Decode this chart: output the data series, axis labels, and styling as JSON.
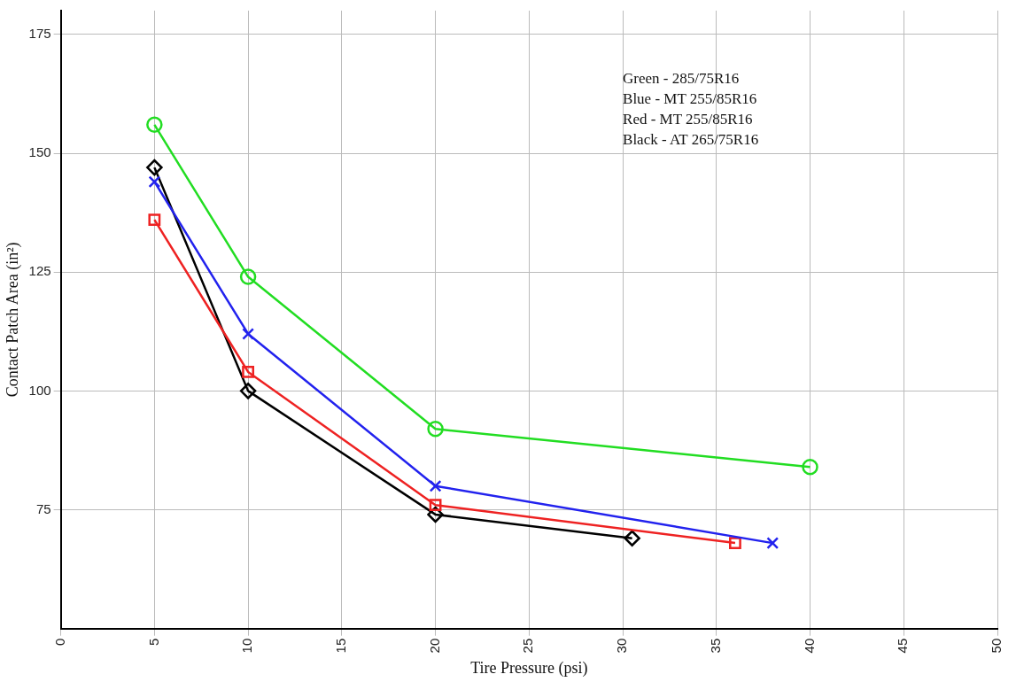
{
  "chart_data": {
    "type": "line",
    "xlabel": "Tire Pressure (psi)",
    "ylabel": "Contact Patch Area (in²)",
    "xlim": [
      0,
      50
    ],
    "xticks": [
      0,
      5,
      10,
      15,
      20,
      25,
      30,
      35,
      40,
      45,
      50
    ],
    "ylim": [
      50,
      180
    ],
    "yticks": [
      75,
      100,
      125,
      150,
      175
    ],
    "grid": true,
    "legend": false,
    "line_style": "solid",
    "series": [
      {
        "color": "#22dd22",
        "marker": "circle",
        "x": [
          5,
          10,
          20,
          40
        ],
        "values": [
          156,
          124,
          92,
          84
        ]
      },
      {
        "color": "#2222ee",
        "marker": "cross",
        "x": [
          5,
          10,
          20,
          38
        ],
        "values": [
          144,
          112,
          80,
          68
        ]
      },
      {
        "color": "#ee2222",
        "marker": "square",
        "x": [
          5,
          10,
          20,
          36
        ],
        "values": [
          136,
          104,
          76,
          68
        ]
      },
      {
        "color": "#000000",
        "marker": "diamond",
        "x": [
          5,
          10,
          20,
          30.5
        ],
        "values": [
          147,
          100,
          74,
          69
        ]
      }
    ],
    "annotations": [
      "Green - 285/75R16",
      "Blue - MT 255/85R16",
      "Red - MT 255/85R16",
      "Black - AT 265/75R16"
    ]
  }
}
